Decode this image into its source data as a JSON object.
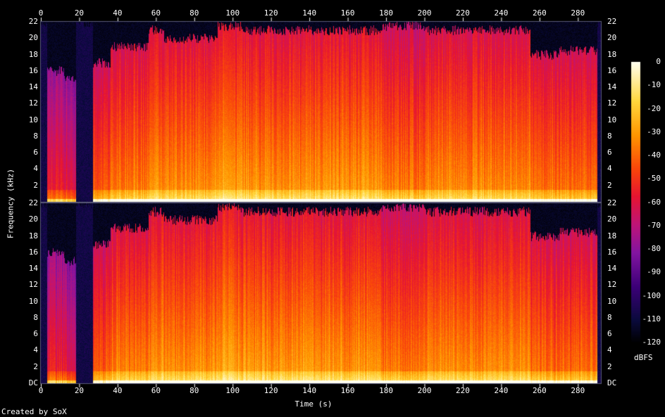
{
  "chart_data": {
    "type": "heatmap",
    "title": "",
    "xlabel": "Time (s)",
    "ylabel": "Frequency (kHz)",
    "xlim": [
      0,
      292
    ],
    "ylim": [
      0,
      22
    ],
    "x_ticks": [
      "0",
      "20",
      "40",
      "60",
      "80",
      "100",
      "120",
      "140",
      "160",
      "180",
      "200",
      "220",
      "240",
      "260",
      "280"
    ],
    "y_ticks_top": [
      "2",
      "4",
      "6",
      "8",
      "10",
      "12",
      "14",
      "16",
      "18",
      "20",
      "22"
    ],
    "y_ticks_bottom": [
      "DC",
      "2",
      "4",
      "6",
      "8",
      "10",
      "12",
      "14",
      "16",
      "18",
      "20",
      "22"
    ],
    "channels": [
      "channel-1",
      "channel-2"
    ],
    "colorbar": {
      "unit": "dBFS",
      "ticks": [
        "0",
        "-10",
        "-20",
        "-30",
        "-40",
        "-50",
        "-60",
        "-70",
        "-80",
        "-90",
        "-100",
        "-110",
        "-120"
      ],
      "range": [
        -120,
        0
      ]
    },
    "segments": [
      {
        "t": [
          0,
          3
        ],
        "level": -110
      },
      {
        "t": [
          3,
          12
        ],
        "level": -75,
        "cutoff": 16
      },
      {
        "t": [
          12,
          18
        ],
        "level": -80,
        "cutoff": 15
      },
      {
        "t": [
          18,
          27
        ],
        "level": -115,
        "cutoff": 22
      },
      {
        "t": [
          27,
          36
        ],
        "level": -62,
        "cutoff": 17
      },
      {
        "t": [
          36,
          56
        ],
        "level": -55,
        "cutoff": 19
      },
      {
        "t": [
          56,
          64
        ],
        "level": -50,
        "cutoff": 21
      },
      {
        "t": [
          64,
          92
        ],
        "level": -52,
        "cutoff": 20
      },
      {
        "t": [
          92,
          105
        ],
        "level": -48,
        "cutoff": 21.5
      },
      {
        "t": [
          105,
          178
        ],
        "level": -50,
        "cutoff": 21
      },
      {
        "t": [
          178,
          200
        ],
        "level": -56,
        "cutoff": 21.5
      },
      {
        "t": [
          200,
          255
        ],
        "level": -52,
        "cutoff": 21
      },
      {
        "t": [
          255,
          270
        ],
        "level": -58,
        "cutoff": 18
      },
      {
        "t": [
          270,
          290
        ],
        "level": -58,
        "cutoff": 18.5
      },
      {
        "t": [
          290,
          292
        ],
        "level": -115,
        "cutoff": 22
      }
    ]
  },
  "footer": {
    "credit": "Created by SoX"
  },
  "colors": {
    "background": "#000000",
    "text": "#ffffff",
    "axis": "#5a5a78"
  }
}
